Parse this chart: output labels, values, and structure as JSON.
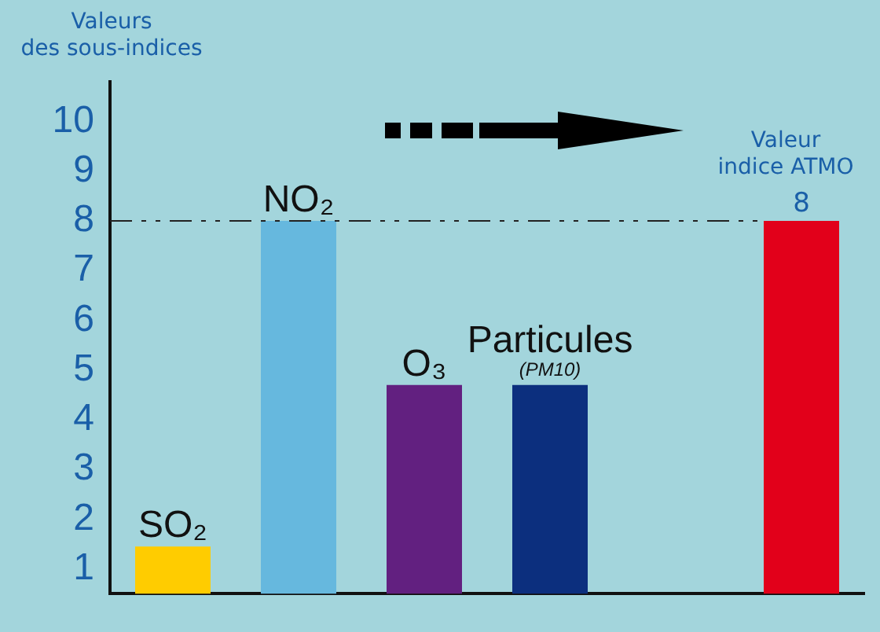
{
  "chart_data": {
    "type": "bar",
    "ylabel": "Valeurs des sous-indices",
    "categories": [
      "SO₂",
      "NO₂",
      "O₃",
      "Particules (PM10)",
      null,
      "Valeur indice ATMO"
    ],
    "values": [
      1.45,
      8,
      4.7,
      4.7,
      null,
      8
    ],
    "colors": [
      "#ffcc00",
      "#66b8de",
      "#622080",
      "#0c2f7e",
      "#a3d5dc",
      "#e2001a"
    ],
    "value_labels": [
      null,
      null,
      null,
      null,
      null,
      "8"
    ],
    "ylim": [
      0.5,
      10.8
    ],
    "yticks": [
      1,
      2,
      3,
      4,
      5,
      6,
      7,
      8,
      9,
      10
    ],
    "ref_lines": [
      {
        "axis": "y",
        "value": 8,
        "color": "#222222",
        "line_style": "dashed"
      }
    ],
    "grid": false,
    "legend": false,
    "tick_labels": "y"
  }
}
